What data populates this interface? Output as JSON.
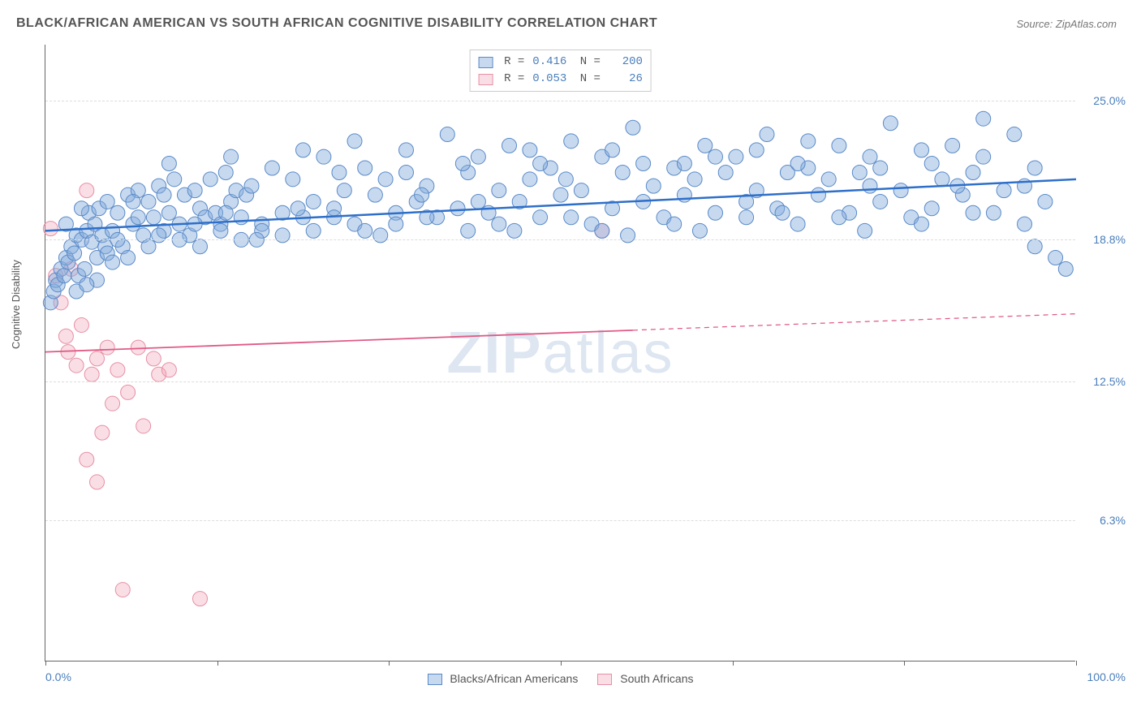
{
  "title": "BLACK/AFRICAN AMERICAN VS SOUTH AFRICAN COGNITIVE DISABILITY CORRELATION CHART",
  "source": "Source: ZipAtlas.com",
  "ylabel": "Cognitive Disability",
  "watermark_prefix": "ZIP",
  "watermark_suffix": "atlas",
  "chart": {
    "type": "scatter",
    "xlim": [
      0,
      100
    ],
    "ylim": [
      0,
      27.5
    ],
    "xtick_positions": [
      0,
      16.67,
      33.33,
      50,
      66.67,
      83.33,
      100
    ],
    "ytick_positions": [
      6.3,
      12.5,
      18.8,
      25.0
    ],
    "ytick_labels": [
      "6.3%",
      "12.5%",
      "18.8%",
      "25.0%"
    ],
    "xaxis_left_label": "0.0%",
    "xaxis_right_label": "100.0%",
    "background_color": "#ffffff",
    "grid_color": "#dddddd",
    "axis_color": "#666666",
    "label_color": "#4a7ebb"
  },
  "series": {
    "blue": {
      "label": "Blacks/African Americans",
      "fill_color": "rgba(130, 170, 220, 0.45)",
      "stroke_color": "#5a8ac8",
      "line_color": "#2e6fc9",
      "line_width": 2.5,
      "marker_radius": 9,
      "R": "0.416",
      "N": "200",
      "trend": {
        "x1": 0,
        "y1": 19.2,
        "x2": 100,
        "y2": 21.5,
        "solid_until_x": 100
      },
      "points": [
        [
          0.5,
          16.0
        ],
        [
          0.8,
          16.5
        ],
        [
          1.0,
          17.0
        ],
        [
          1.2,
          16.8
        ],
        [
          1.5,
          17.5
        ],
        [
          1.8,
          17.2
        ],
        [
          2.0,
          18.0
        ],
        [
          2.2,
          17.8
        ],
        [
          2.5,
          18.5
        ],
        [
          2.8,
          18.2
        ],
        [
          3.0,
          19.0
        ],
        [
          3.2,
          17.2
        ],
        [
          3.5,
          18.8
        ],
        [
          3.8,
          17.5
        ],
        [
          4.0,
          19.2
        ],
        [
          4.2,
          20.0
        ],
        [
          4.5,
          18.7
        ],
        [
          4.8,
          19.5
        ],
        [
          5.0,
          17.0
        ],
        [
          5.2,
          20.2
        ],
        [
          5.5,
          19.0
        ],
        [
          5.8,
          18.5
        ],
        [
          6.0,
          20.5
        ],
        [
          6.5,
          19.2
        ],
        [
          7.0,
          20.0
        ],
        [
          7.5,
          18.5
        ],
        [
          8.0,
          20.8
        ],
        [
          8.5,
          19.5
        ],
        [
          9.0,
          21.0
        ],
        [
          9.5,
          19.0
        ],
        [
          10,
          20.5
        ],
        [
          10.5,
          19.8
        ],
        [
          11,
          21.2
        ],
        [
          11.5,
          19.2
        ],
        [
          12,
          20.0
        ],
        [
          12.5,
          21.5
        ],
        [
          13,
          19.5
        ],
        [
          13.5,
          20.8
        ],
        [
          14,
          19.0
        ],
        [
          14.5,
          21.0
        ],
        [
          15,
          20.2
        ],
        [
          15.5,
          19.8
        ],
        [
          16,
          21.5
        ],
        [
          16.5,
          20.0
        ],
        [
          17,
          19.5
        ],
        [
          17.5,
          21.8
        ],
        [
          18,
          20.5
        ],
        [
          18.5,
          21.0
        ],
        [
          19,
          19.8
        ],
        [
          19.5,
          20.8
        ],
        [
          20,
          21.2
        ],
        [
          21,
          19.5
        ],
        [
          22,
          22.0
        ],
        [
          23,
          20.0
        ],
        [
          24,
          21.5
        ],
        [
          25,
          19.8
        ],
        [
          26,
          20.5
        ],
        [
          27,
          22.5
        ],
        [
          28,
          20.2
        ],
        [
          29,
          21.0
        ],
        [
          30,
          19.5
        ],
        [
          31,
          22.0
        ],
        [
          32,
          20.8
        ],
        [
          33,
          21.5
        ],
        [
          34,
          20.0
        ],
        [
          35,
          22.8
        ],
        [
          36,
          20.5
        ],
        [
          37,
          21.2
        ],
        [
          38,
          19.8
        ],
        [
          39,
          23.5
        ],
        [
          40,
          20.2
        ],
        [
          41,
          21.8
        ],
        [
          42,
          22.5
        ],
        [
          43,
          20.0
        ],
        [
          44,
          21.0
        ],
        [
          45,
          23.0
        ],
        [
          46,
          20.5
        ],
        [
          47,
          21.5
        ],
        [
          48,
          19.8
        ],
        [
          49,
          22.0
        ],
        [
          50,
          20.8
        ],
        [
          51,
          23.2
        ],
        [
          52,
          21.0
        ],
        [
          53,
          19.5
        ],
        [
          54,
          22.5
        ],
        [
          55,
          20.2
        ],
        [
          56,
          21.8
        ],
        [
          57,
          23.8
        ],
        [
          58,
          20.5
        ],
        [
          59,
          21.2
        ],
        [
          60,
          19.8
        ],
        [
          61,
          22.0
        ],
        [
          62,
          20.8
        ],
        [
          63,
          21.5
        ],
        [
          64,
          23.0
        ],
        [
          65,
          20.0
        ],
        [
          66,
          21.8
        ],
        [
          67,
          22.5
        ],
        [
          68,
          20.5
        ],
        [
          69,
          21.0
        ],
        [
          70,
          23.5
        ],
        [
          71,
          20.2
        ],
        [
          72,
          21.8
        ],
        [
          73,
          19.5
        ],
        [
          74,
          22.0
        ],
        [
          75,
          20.8
        ],
        [
          76,
          21.5
        ],
        [
          77,
          23.0
        ],
        [
          78,
          20.0
        ],
        [
          79,
          21.8
        ],
        [
          80,
          22.5
        ],
        [
          81,
          20.5
        ],
        [
          82,
          24.0
        ],
        [
          83,
          21.0
        ],
        [
          84,
          19.8
        ],
        [
          85,
          22.8
        ],
        [
          86,
          20.2
        ],
        [
          87,
          21.5
        ],
        [
          88,
          23.0
        ],
        [
          89,
          20.8
        ],
        [
          90,
          21.8
        ],
        [
          91,
          22.5
        ],
        [
          92,
          20.0
        ],
        [
          93,
          21.0
        ],
        [
          94,
          23.5
        ],
        [
          95,
          19.5
        ],
        [
          96,
          22.0
        ],
        [
          97,
          20.5
        ],
        [
          98,
          18.0
        ],
        [
          99,
          17.5
        ],
        [
          12,
          22.2
        ],
        [
          18,
          22.5
        ],
        [
          25,
          22.8
        ],
        [
          30,
          23.2
        ],
        [
          35,
          21.8
        ],
        [
          42,
          20.5
        ],
        [
          48,
          22.2
        ],
        [
          55,
          22.8
        ],
        [
          62,
          22.2
        ],
        [
          68,
          19.8
        ],
        [
          74,
          23.2
        ],
        [
          80,
          21.2
        ],
        [
          85,
          19.5
        ],
        [
          90,
          20.0
        ],
        [
          95,
          21.2
        ],
        [
          3,
          16.5
        ],
        [
          4,
          16.8
        ],
        [
          5,
          18.0
        ],
        [
          6,
          18.2
        ],
        [
          7,
          18.8
        ],
        [
          8,
          18.0
        ],
        [
          9,
          19.8
        ],
        [
          10,
          18.5
        ],
        [
          11,
          19.0
        ],
        [
          13,
          18.8
        ],
        [
          15,
          18.5
        ],
        [
          17,
          19.2
        ],
        [
          19,
          18.8
        ],
        [
          21,
          19.2
        ],
        [
          23,
          19.0
        ],
        [
          26,
          19.2
        ],
        [
          28,
          19.8
        ],
        [
          31,
          19.2
        ],
        [
          34,
          19.5
        ],
        [
          37,
          19.8
        ],
        [
          41,
          19.2
        ],
        [
          44,
          19.5
        ],
        [
          47,
          22.8
        ],
        [
          51,
          19.8
        ],
        [
          54,
          19.2
        ],
        [
          58,
          22.2
        ],
        [
          61,
          19.5
        ],
        [
          65,
          22.5
        ],
        [
          69,
          22.8
        ],
        [
          73,
          22.2
        ],
        [
          77,
          19.8
        ],
        [
          81,
          22.0
        ],
        [
          86,
          22.2
        ],
        [
          91,
          24.2
        ],
        [
          96,
          18.5
        ],
        [
          2,
          19.5
        ],
        [
          3.5,
          20.2
        ],
        [
          6.5,
          17.8
        ],
        [
          8.5,
          20.5
        ],
        [
          11.5,
          20.8
        ],
        [
          14.5,
          19.5
        ],
        [
          17.5,
          20.0
        ],
        [
          20.5,
          18.8
        ],
        [
          24.5,
          20.2
        ],
        [
          28.5,
          21.8
        ],
        [
          32.5,
          19.0
        ],
        [
          36.5,
          20.8
        ],
        [
          40.5,
          22.2
        ],
        [
          45.5,
          19.2
        ],
        [
          50.5,
          21.5
        ],
        [
          56.5,
          19.0
        ],
        [
          63.5,
          19.2
        ],
        [
          71.5,
          20.0
        ],
        [
          79.5,
          19.2
        ],
        [
          88.5,
          21.2
        ]
      ]
    },
    "pink": {
      "label": "South Africans",
      "fill_color": "rgba(240, 160, 180, 0.35)",
      "stroke_color": "#e88fa5",
      "line_color": "#e05a85",
      "line_width": 1.8,
      "marker_radius": 9,
      "R": "0.053",
      "N": "26",
      "trend": {
        "x1": 0,
        "y1": 13.8,
        "x2": 100,
        "y2": 15.5,
        "solid_until_x": 57
      },
      "points": [
        [
          0.5,
          19.3
        ],
        [
          1.0,
          17.2
        ],
        [
          1.5,
          16.0
        ],
        [
          2.0,
          14.5
        ],
        [
          2.2,
          13.8
        ],
        [
          2.5,
          17.5
        ],
        [
          3.0,
          13.2
        ],
        [
          3.5,
          15.0
        ],
        [
          4.0,
          21.0
        ],
        [
          4.5,
          12.8
        ],
        [
          5.0,
          13.5
        ],
        [
          5.5,
          10.2
        ],
        [
          6.0,
          14.0
        ],
        [
          6.5,
          11.5
        ],
        [
          7.0,
          13.0
        ],
        [
          8.0,
          12.0
        ],
        [
          9.0,
          14.0
        ],
        [
          9.5,
          10.5
        ],
        [
          10.5,
          13.5
        ],
        [
          11.0,
          12.8
        ],
        [
          4.0,
          9.0
        ],
        [
          5.0,
          8.0
        ],
        [
          12.0,
          13.0
        ],
        [
          7.5,
          3.2
        ],
        [
          15.0,
          2.8
        ],
        [
          54.0,
          19.2
        ]
      ]
    }
  },
  "text_colors": {
    "title": "#555555",
    "source": "#777777",
    "axis_text": "#555555"
  }
}
